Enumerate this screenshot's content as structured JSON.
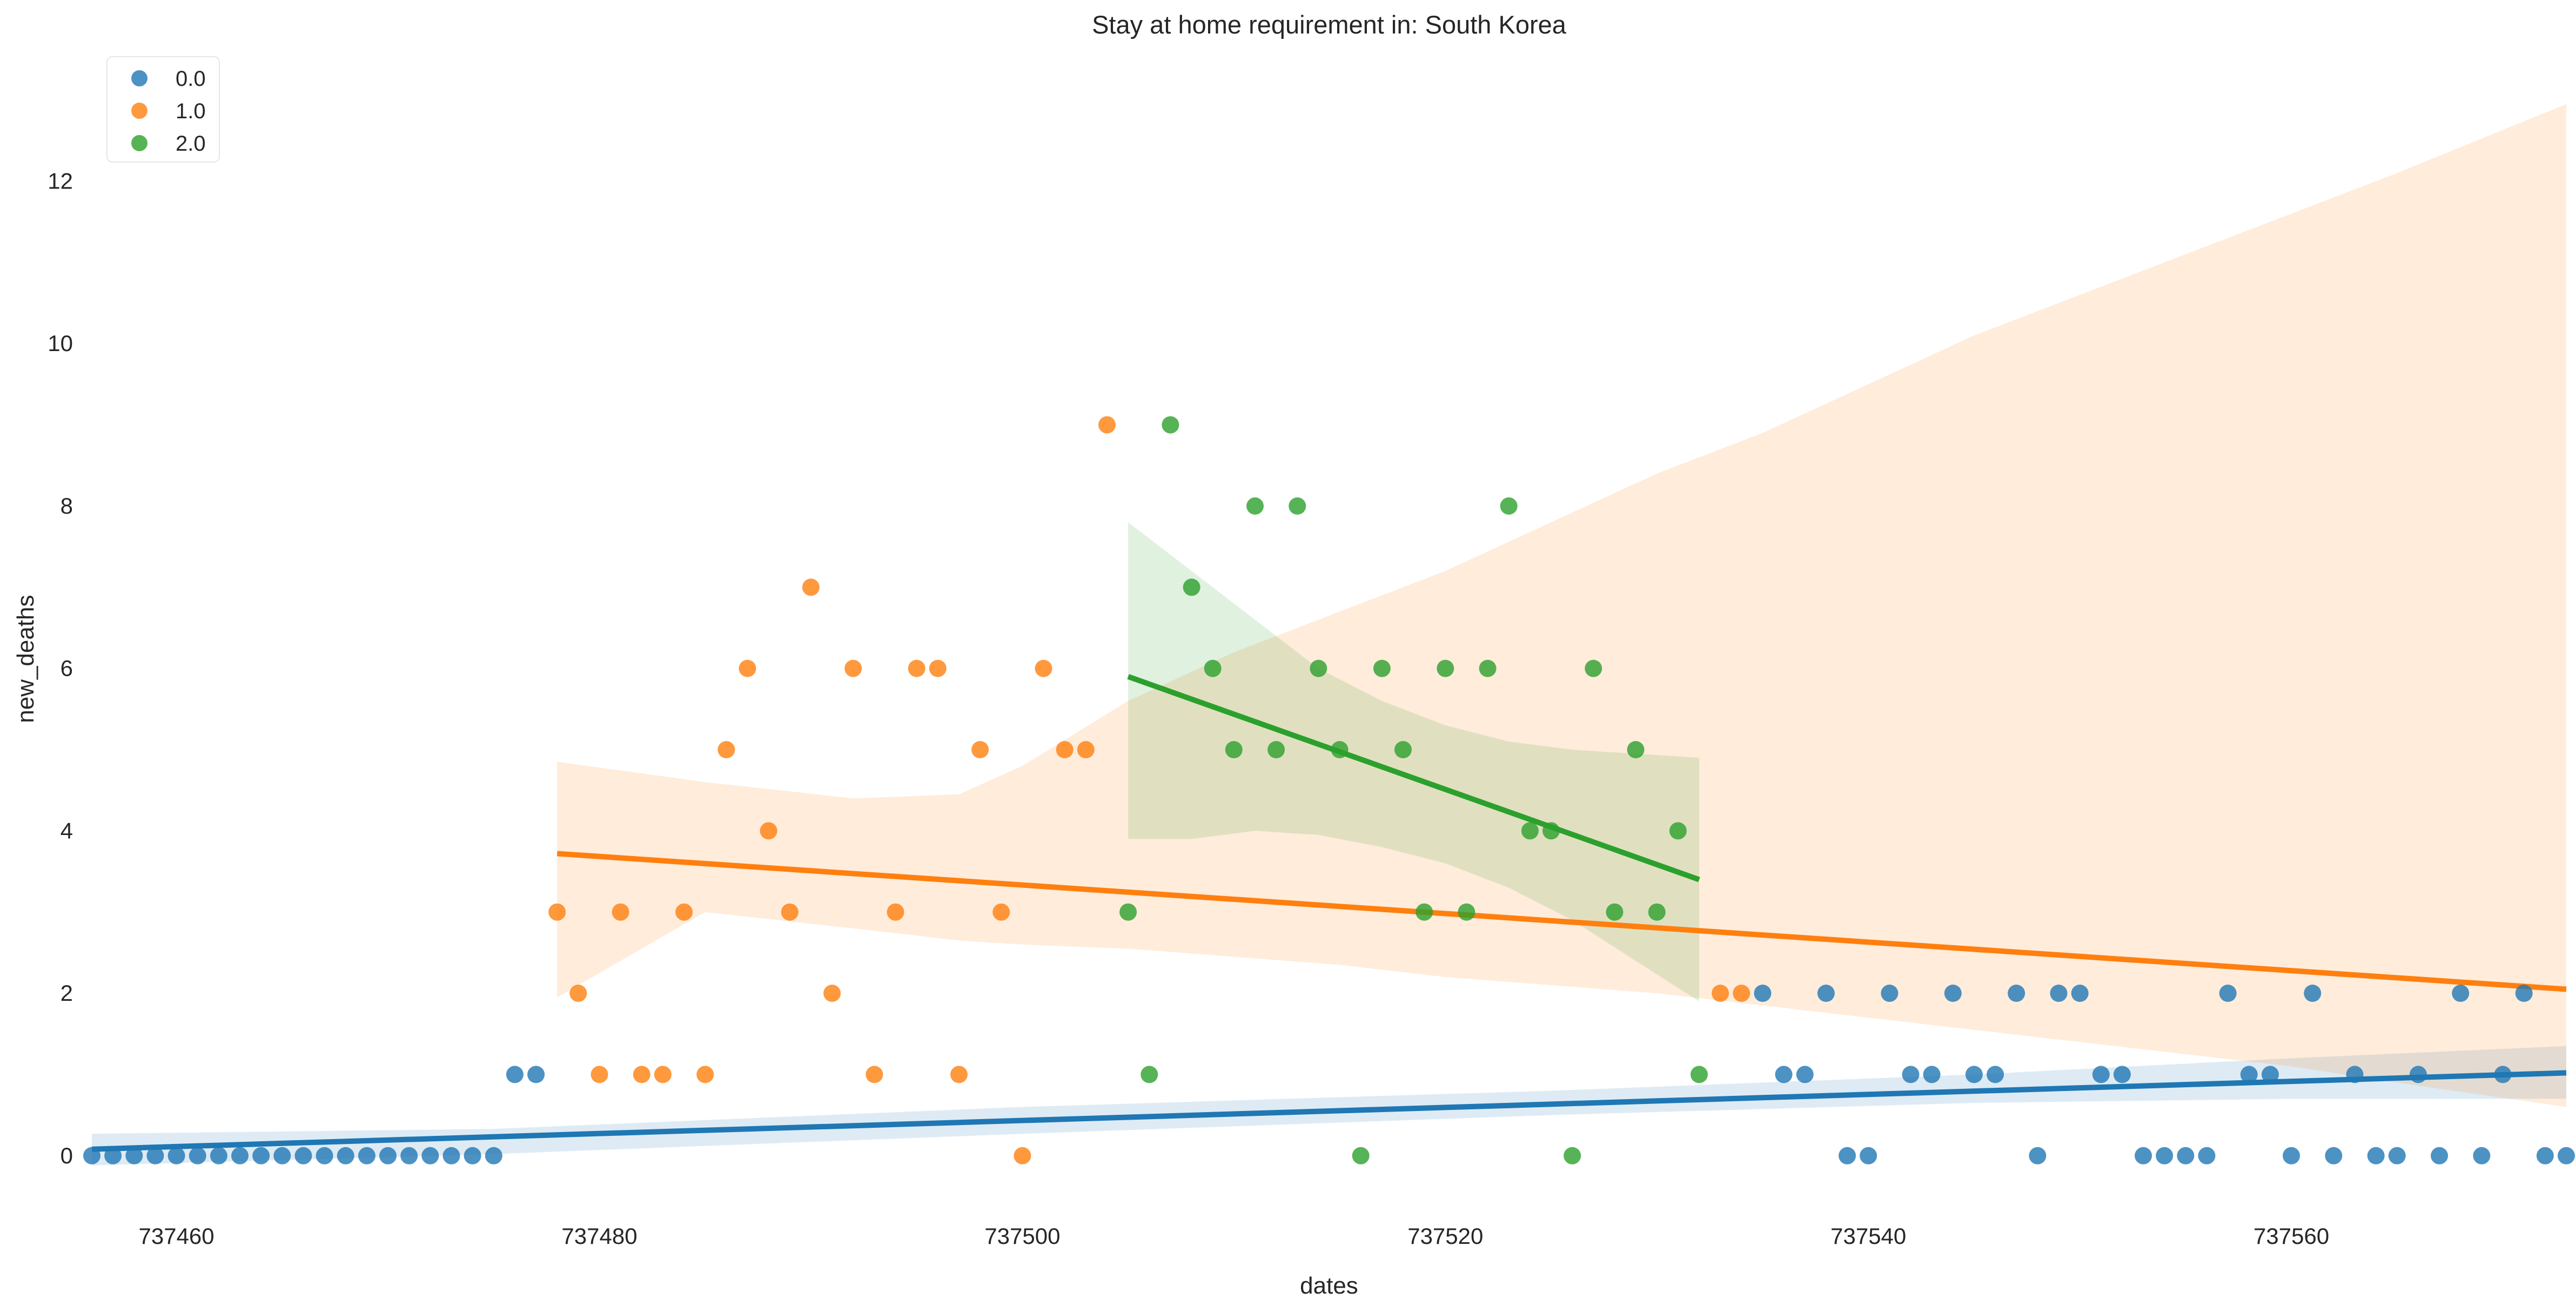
{
  "chart_data": {
    "type": "scatter",
    "title": "Stay at home requirement in: South Korea",
    "xlabel": "dates",
    "ylabel": "new_deaths",
    "xlim": [
      737456,
      737573
    ],
    "ylim": [
      -0.7,
      13.5
    ],
    "xticks": [
      737460,
      737480,
      737500,
      737520,
      737540,
      737560
    ],
    "yticks": [
      0,
      2,
      4,
      6,
      8,
      10,
      12
    ],
    "grid": false,
    "legend": {
      "position": "top-left",
      "entries": [
        "0.0",
        "1.0",
        "2.0"
      ]
    },
    "series": [
      {
        "name": "0.0",
        "color": "#1f77b4",
        "points": [
          [
            737456,
            0
          ],
          [
            737457,
            0
          ],
          [
            737458,
            0
          ],
          [
            737459,
            0
          ],
          [
            737460,
            0
          ],
          [
            737461,
            0
          ],
          [
            737462,
            0
          ],
          [
            737463,
            0
          ],
          [
            737464,
            0
          ],
          [
            737465,
            0
          ],
          [
            737466,
            0
          ],
          [
            737467,
            0
          ],
          [
            737468,
            0
          ],
          [
            737469,
            0
          ],
          [
            737470,
            0
          ],
          [
            737471,
            0
          ],
          [
            737472,
            0
          ],
          [
            737473,
            0
          ],
          [
            737474,
            0
          ],
          [
            737475,
            0
          ],
          [
            737476,
            1
          ],
          [
            737477,
            1
          ],
          [
            737535,
            2
          ],
          [
            737536,
            1
          ],
          [
            737537,
            1
          ],
          [
            737538,
            2
          ],
          [
            737539,
            0
          ],
          [
            737540,
            0
          ],
          [
            737541,
            2
          ],
          [
            737542,
            1
          ],
          [
            737543,
            1
          ],
          [
            737544,
            2
          ],
          [
            737545,
            1
          ],
          [
            737546,
            1
          ],
          [
            737547,
            2
          ],
          [
            737548,
            0
          ],
          [
            737549,
            2
          ],
          [
            737550,
            2
          ],
          [
            737551,
            1
          ],
          [
            737552,
            1
          ],
          [
            737553,
            0
          ],
          [
            737554,
            0
          ],
          [
            737555,
            0
          ],
          [
            737556,
            0
          ],
          [
            737557,
            2
          ],
          [
            737558,
            1
          ],
          [
            737559,
            1
          ],
          [
            737560,
            0
          ],
          [
            737561,
            2
          ],
          [
            737562,
            0
          ],
          [
            737563,
            1
          ],
          [
            737564,
            0
          ],
          [
            737565,
            0
          ],
          [
            737566,
            1
          ],
          [
            737567,
            0
          ],
          [
            737568,
            2
          ],
          [
            737569,
            0
          ],
          [
            737570,
            1
          ],
          [
            737571,
            2
          ],
          [
            737572,
            0
          ],
          [
            737573,
            0
          ]
        ],
        "fit": {
          "x": [
            737456,
            737573
          ],
          "y": [
            0.08,
            1.02
          ]
        }
      },
      {
        "name": "1.0",
        "color": "#ff7f0e",
        "points": [
          [
            737478,
            3
          ],
          [
            737479,
            2
          ],
          [
            737480,
            1
          ],
          [
            737481,
            3
          ],
          [
            737482,
            1
          ],
          [
            737483,
            1
          ],
          [
            737484,
            3
          ],
          [
            737485,
            1
          ],
          [
            737486,
            5
          ],
          [
            737487,
            6
          ],
          [
            737488,
            4
          ],
          [
            737489,
            3
          ],
          [
            737490,
            7
          ],
          [
            737491,
            2
          ],
          [
            737492,
            6
          ],
          [
            737493,
            1
          ],
          [
            737494,
            3
          ],
          [
            737495,
            6
          ],
          [
            737496,
            6
          ],
          [
            737497,
            1
          ],
          [
            737498,
            5
          ],
          [
            737499,
            3
          ],
          [
            737500,
            0
          ],
          [
            737501,
            6
          ],
          [
            737502,
            5
          ],
          [
            737503,
            5
          ],
          [
            737504,
            9
          ],
          [
            737533,
            2
          ],
          [
            737534,
            2
          ]
        ],
        "fit": {
          "x": [
            737478,
            737573
          ],
          "y": [
            3.72,
            2.05
          ]
        }
      },
      {
        "name": "2.0",
        "color": "#2ca02c",
        "points": [
          [
            737505,
            3
          ],
          [
            737506,
            1
          ],
          [
            737507,
            9
          ],
          [
            737508,
            7
          ],
          [
            737509,
            6
          ],
          [
            737510,
            5
          ],
          [
            737511,
            8
          ],
          [
            737512,
            5
          ],
          [
            737513,
            8
          ],
          [
            737514,
            6
          ],
          [
            737515,
            5
          ],
          [
            737516,
            0
          ],
          [
            737517,
            6
          ],
          [
            737518,
            5
          ],
          [
            737519,
            3
          ],
          [
            737520,
            6
          ],
          [
            737521,
            3
          ],
          [
            737522,
            6
          ],
          [
            737523,
            8
          ],
          [
            737524,
            4
          ],
          [
            737525,
            4
          ],
          [
            737526,
            0
          ],
          [
            737527,
            6
          ],
          [
            737528,
            3
          ],
          [
            737529,
            5
          ],
          [
            737530,
            3
          ],
          [
            737531,
            4
          ],
          [
            737532,
            1
          ]
        ],
        "fit": {
          "x": [
            737505,
            737532
          ],
          "y": [
            5.9,
            3.4
          ]
        }
      }
    ],
    "confidence_bands": [
      {
        "series": "0.0",
        "color": "#1f77b4",
        "x": [
          737456,
          737475,
          737500,
          737525,
          737545,
          737560,
          737573
        ],
        "upper": [
          0.27,
          0.33,
          0.6,
          0.8,
          1.0,
          1.2,
          1.35
        ],
        "lower": [
          -0.12,
          0.02,
          0.27,
          0.5,
          0.65,
          0.7,
          0.7
        ]
      },
      {
        "series": "1.0",
        "color": "#ff7f0e",
        "x": [
          737478,
          737485,
          737492,
          737497,
          737500,
          737505,
          737510,
          737515,
          737520,
          737525,
          737530,
          737535,
          737540,
          737545,
          737550,
          737555,
          737560,
          737565,
          737573
        ],
        "upper": [
          4.85,
          4.6,
          4.4,
          4.45,
          4.8,
          5.6,
          6.2,
          6.7,
          7.2,
          7.8,
          8.4,
          8.9,
          9.5,
          10.1,
          10.6,
          11.1,
          11.6,
          12.1,
          12.95
        ],
        "lower": [
          1.95,
          3.0,
          2.8,
          2.65,
          2.6,
          2.55,
          2.45,
          2.35,
          2.2,
          2.1,
          2.0,
          1.85,
          1.7,
          1.55,
          1.4,
          1.25,
          1.1,
          0.9,
          0.6
        ]
      },
      {
        "series": "2.0",
        "color": "#2ca02c",
        "x": [
          737505,
          737508,
          737511,
          737514,
          737517,
          737520,
          737523,
          737526,
          737529,
          737532
        ],
        "upper": [
          7.8,
          7.2,
          6.6,
          6.0,
          5.6,
          5.3,
          5.1,
          5.0,
          4.95,
          4.9
        ],
        "lower": [
          3.9,
          3.9,
          4.0,
          3.95,
          3.8,
          3.6,
          3.3,
          2.9,
          2.4,
          1.9
        ]
      }
    ]
  }
}
